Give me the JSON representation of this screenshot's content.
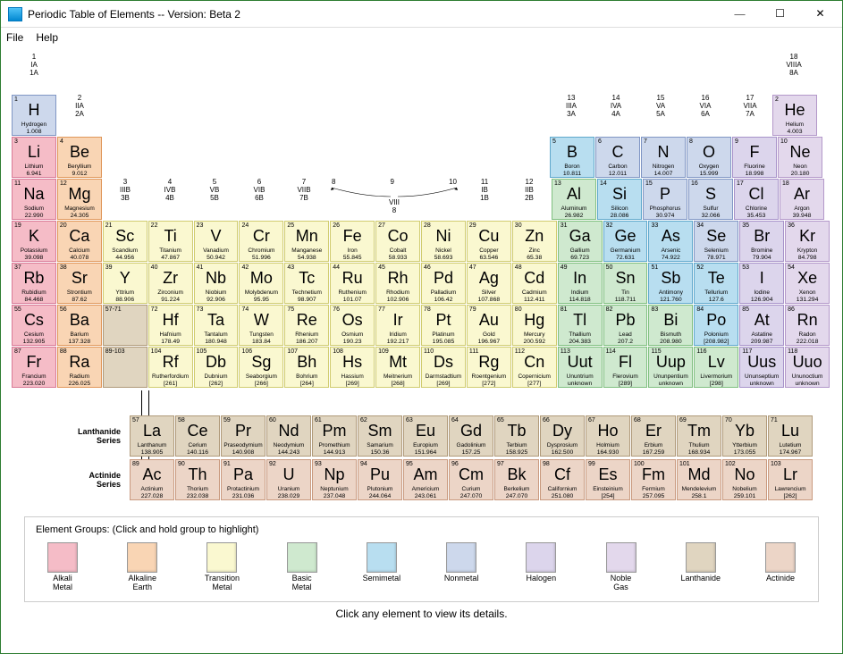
{
  "window": {
    "title": "Periodic Table of Elements  -- Version: Beta 2",
    "minimize": "—",
    "maximize": "☐",
    "close": "✕"
  },
  "menu": {
    "file": "File",
    "help": "Help"
  },
  "group_headers": [
    {
      "col": 1,
      "lines": [
        "1",
        "IA",
        "1A"
      ]
    },
    {
      "col": 2,
      "lines": [
        "2",
        "IIA",
        "2A"
      ]
    },
    {
      "col": 3,
      "lines": [
        "3",
        "IIIB",
        "3B"
      ]
    },
    {
      "col": 4,
      "lines": [
        "4",
        "IVB",
        "4B"
      ]
    },
    {
      "col": 5,
      "lines": [
        "5",
        "VB",
        "5B"
      ]
    },
    {
      "col": 6,
      "lines": [
        "6",
        "VIB",
        "6B"
      ]
    },
    {
      "col": 7,
      "lines": [
        "7",
        "VIIB",
        "7B"
      ]
    },
    {
      "col": 8,
      "lines": [
        "8",
        "",
        ""
      ]
    },
    {
      "col": 9,
      "lines": [
        "9",
        "VIII",
        "8"
      ]
    },
    {
      "col": 10,
      "lines": [
        "10",
        "",
        ""
      ]
    },
    {
      "col": 11,
      "lines": [
        "11",
        "IB",
        "1B"
      ]
    },
    {
      "col": 12,
      "lines": [
        "12",
        "IIB",
        "2B"
      ]
    },
    {
      "col": 13,
      "lines": [
        "13",
        "IIIA",
        "3A"
      ]
    },
    {
      "col": 14,
      "lines": [
        "14",
        "IVA",
        "4A"
      ]
    },
    {
      "col": 15,
      "lines": [
        "15",
        "VA",
        "5A"
      ]
    },
    {
      "col": 16,
      "lines": [
        "16",
        "VIA",
        "6A"
      ]
    },
    {
      "col": 17,
      "lines": [
        "17",
        "VIIA",
        "7A"
      ]
    },
    {
      "col": 18,
      "lines": [
        "18",
        "VIIIA",
        "8A"
      ]
    }
  ],
  "elements": [
    {
      "n": 1,
      "s": "H",
      "nm": "Hydrogen",
      "w": "1.008",
      "c": "nonmetal",
      "r": 1,
      "col": 1
    },
    {
      "n": 2,
      "s": "He",
      "nm": "Helium",
      "w": "4.003",
      "c": "noble",
      "r": 1,
      "col": 18
    },
    {
      "n": 3,
      "s": "Li",
      "nm": "Lithium",
      "w": "6.941",
      "c": "alkali",
      "r": 2,
      "col": 1
    },
    {
      "n": 4,
      "s": "Be",
      "nm": "Beryllium",
      "w": "9.012",
      "c": "alkaline",
      "r": 2,
      "col": 2
    },
    {
      "n": 5,
      "s": "B",
      "nm": "Boron",
      "w": "10.811",
      "c": "semi",
      "r": 2,
      "col": 13
    },
    {
      "n": 6,
      "s": "C",
      "nm": "Carbon",
      "w": "12.011",
      "c": "nonmetal",
      "r": 2,
      "col": 14
    },
    {
      "n": 7,
      "s": "N",
      "nm": "Nitrogen",
      "w": "14.007",
      "c": "nonmetal",
      "r": 2,
      "col": 15
    },
    {
      "n": 8,
      "s": "O",
      "nm": "Oxygen",
      "w": "15.999",
      "c": "nonmetal",
      "r": 2,
      "col": 16
    },
    {
      "n": 9,
      "s": "F",
      "nm": "Fluorine",
      "w": "18.998",
      "c": "halogen",
      "r": 2,
      "col": 17
    },
    {
      "n": 10,
      "s": "Ne",
      "nm": "Neon",
      "w": "20.180",
      "c": "noble",
      "r": 2,
      "col": 18
    },
    {
      "n": 11,
      "s": "Na",
      "nm": "Sodium",
      "w": "22.990",
      "c": "alkali",
      "r": 3,
      "col": 1
    },
    {
      "n": 12,
      "s": "Mg",
      "nm": "Magnesium",
      "w": "24.305",
      "c": "alkaline",
      "r": 3,
      "col": 2
    },
    {
      "n": 13,
      "s": "Al",
      "nm": "Aluminum",
      "w": "26.982",
      "c": "basic",
      "r": 3,
      "col": 13
    },
    {
      "n": 14,
      "s": "Si",
      "nm": "Silicon",
      "w": "28.086",
      "c": "semi",
      "r": 3,
      "col": 14
    },
    {
      "n": 15,
      "s": "P",
      "nm": "Phosphorus",
      "w": "30.974",
      "c": "nonmetal",
      "r": 3,
      "col": 15
    },
    {
      "n": 16,
      "s": "S",
      "nm": "Sulfur",
      "w": "32.066",
      "c": "nonmetal",
      "r": 3,
      "col": 16
    },
    {
      "n": 17,
      "s": "Cl",
      "nm": "Chlorine",
      "w": "35.453",
      "c": "halogen",
      "r": 3,
      "col": 17
    },
    {
      "n": 18,
      "s": "Ar",
      "nm": "Argon",
      "w": "39.948",
      "c": "noble",
      "r": 3,
      "col": 18
    },
    {
      "n": 19,
      "s": "K",
      "nm": "Potassium",
      "w": "39.098",
      "c": "alkali",
      "r": 4,
      "col": 1
    },
    {
      "n": 20,
      "s": "Ca",
      "nm": "Calcium",
      "w": "40.078",
      "c": "alkaline",
      "r": 4,
      "col": 2
    },
    {
      "n": 21,
      "s": "Sc",
      "nm": "Scandium",
      "w": "44.956",
      "c": "transition",
      "r": 4,
      "col": 3
    },
    {
      "n": 22,
      "s": "Ti",
      "nm": "Titanium",
      "w": "47.867",
      "c": "transition",
      "r": 4,
      "col": 4
    },
    {
      "n": 23,
      "s": "V",
      "nm": "Vanadium",
      "w": "50.942",
      "c": "transition",
      "r": 4,
      "col": 5
    },
    {
      "n": 24,
      "s": "Cr",
      "nm": "Chromium",
      "w": "51.996",
      "c": "transition",
      "r": 4,
      "col": 6
    },
    {
      "n": 25,
      "s": "Mn",
      "nm": "Manganese",
      "w": "54.938",
      "c": "transition",
      "r": 4,
      "col": 7
    },
    {
      "n": 26,
      "s": "Fe",
      "nm": "Iron",
      "w": "55.845",
      "c": "transition",
      "r": 4,
      "col": 8
    },
    {
      "n": 27,
      "s": "Co",
      "nm": "Cobalt",
      "w": "58.933",
      "c": "transition",
      "r": 4,
      "col": 9
    },
    {
      "n": 28,
      "s": "Ni",
      "nm": "Nickel",
      "w": "58.693",
      "c": "transition",
      "r": 4,
      "col": 10
    },
    {
      "n": 29,
      "s": "Cu",
      "nm": "Copper",
      "w": "63.546",
      "c": "transition",
      "r": 4,
      "col": 11
    },
    {
      "n": 30,
      "s": "Zn",
      "nm": "Zinc",
      "w": "65.38",
      "c": "transition",
      "r": 4,
      "col": 12
    },
    {
      "n": 31,
      "s": "Ga",
      "nm": "Gallium",
      "w": "69.723",
      "c": "basic",
      "r": 4,
      "col": 13
    },
    {
      "n": 32,
      "s": "Ge",
      "nm": "Germanium",
      "w": "72.631",
      "c": "semi",
      "r": 4,
      "col": 14
    },
    {
      "n": 33,
      "s": "As",
      "nm": "Arsenic",
      "w": "74.922",
      "c": "semi",
      "r": 4,
      "col": 15
    },
    {
      "n": 34,
      "s": "Se",
      "nm": "Selenium",
      "w": "78.971",
      "c": "nonmetal",
      "r": 4,
      "col": 16
    },
    {
      "n": 35,
      "s": "Br",
      "nm": "Bromine",
      "w": "79.904",
      "c": "halogen",
      "r": 4,
      "col": 17
    },
    {
      "n": 36,
      "s": "Kr",
      "nm": "Krypton",
      "w": "84.798",
      "c": "noble",
      "r": 4,
      "col": 18
    },
    {
      "n": 37,
      "s": "Rb",
      "nm": "Rubidium",
      "w": "84.468",
      "c": "alkali",
      "r": 5,
      "col": 1
    },
    {
      "n": 38,
      "s": "Sr",
      "nm": "Strontium",
      "w": "87.62",
      "c": "alkaline",
      "r": 5,
      "col": 2
    },
    {
      "n": 39,
      "s": "Y",
      "nm": "Yttrium",
      "w": "88.906",
      "c": "transition",
      "r": 5,
      "col": 3
    },
    {
      "n": 40,
      "s": "Zr",
      "nm": "Zirconium",
      "w": "91.224",
      "c": "transition",
      "r": 5,
      "col": 4
    },
    {
      "n": 41,
      "s": "Nb",
      "nm": "Niobium",
      "w": "92.906",
      "c": "transition",
      "r": 5,
      "col": 5
    },
    {
      "n": 42,
      "s": "Mo",
      "nm": "Molybdenum",
      "w": "95.95",
      "c": "transition",
      "r": 5,
      "col": 6
    },
    {
      "n": 43,
      "s": "Tc",
      "nm": "Technetium",
      "w": "98.907",
      "c": "transition",
      "r": 5,
      "col": 7
    },
    {
      "n": 44,
      "s": "Ru",
      "nm": "Ruthenium",
      "w": "101.07",
      "c": "transition",
      "r": 5,
      "col": 8
    },
    {
      "n": 45,
      "s": "Rh",
      "nm": "Rhodium",
      "w": "102.906",
      "c": "transition",
      "r": 5,
      "col": 9
    },
    {
      "n": 46,
      "s": "Pd",
      "nm": "Palladium",
      "w": "106.42",
      "c": "transition",
      "r": 5,
      "col": 10
    },
    {
      "n": 47,
      "s": "Ag",
      "nm": "Silver",
      "w": "107.868",
      "c": "transition",
      "r": 5,
      "col": 11
    },
    {
      "n": 48,
      "s": "Cd",
      "nm": "Cadmium",
      "w": "112.411",
      "c": "transition",
      "r": 5,
      "col": 12
    },
    {
      "n": 49,
      "s": "In",
      "nm": "Indium",
      "w": "114.818",
      "c": "basic",
      "r": 5,
      "col": 13
    },
    {
      "n": 50,
      "s": "Sn",
      "nm": "Tin",
      "w": "118.711",
      "c": "basic",
      "r": 5,
      "col": 14
    },
    {
      "n": 51,
      "s": "Sb",
      "nm": "Antimony",
      "w": "121.760",
      "c": "semi",
      "r": 5,
      "col": 15
    },
    {
      "n": 52,
      "s": "Te",
      "nm": "Tellurium",
      "w": "127.6",
      "c": "semi",
      "r": 5,
      "col": 16
    },
    {
      "n": 53,
      "s": "I",
      "nm": "Iodine",
      "w": "126.904",
      "c": "halogen",
      "r": 5,
      "col": 17
    },
    {
      "n": 54,
      "s": "Xe",
      "nm": "Xenon",
      "w": "131.294",
      "c": "noble",
      "r": 5,
      "col": 18
    },
    {
      "n": 55,
      "s": "Cs",
      "nm": "Cesium",
      "w": "132.905",
      "c": "alkali",
      "r": 6,
      "col": 1
    },
    {
      "n": 56,
      "s": "Ba",
      "nm": "Barium",
      "w": "137.328",
      "c": "alkaline",
      "r": 6,
      "col": 2
    },
    {
      "n": "57-71",
      "s": "",
      "nm": "",
      "w": "",
      "c": "range",
      "r": 6,
      "col": 3
    },
    {
      "n": 72,
      "s": "Hf",
      "nm": "Hafnium",
      "w": "178.49",
      "c": "transition",
      "r": 6,
      "col": 4
    },
    {
      "n": 73,
      "s": "Ta",
      "nm": "Tantalum",
      "w": "180.948",
      "c": "transition",
      "r": 6,
      "col": 5
    },
    {
      "n": 74,
      "s": "W",
      "nm": "Tungsten",
      "w": "183.84",
      "c": "transition",
      "r": 6,
      "col": 6
    },
    {
      "n": 75,
      "s": "Re",
      "nm": "Rhenium",
      "w": "186.207",
      "c": "transition",
      "r": 6,
      "col": 7
    },
    {
      "n": 76,
      "s": "Os",
      "nm": "Osmium",
      "w": "190.23",
      "c": "transition",
      "r": 6,
      "col": 8
    },
    {
      "n": 77,
      "s": "Ir",
      "nm": "Iridium",
      "w": "192.217",
      "c": "transition",
      "r": 6,
      "col": 9
    },
    {
      "n": 78,
      "s": "Pt",
      "nm": "Platinum",
      "w": "195.085",
      "c": "transition",
      "r": 6,
      "col": 10
    },
    {
      "n": 79,
      "s": "Au",
      "nm": "Gold",
      "w": "196.967",
      "c": "transition",
      "r": 6,
      "col": 11
    },
    {
      "n": 80,
      "s": "Hg",
      "nm": "Mercury",
      "w": "200.592",
      "c": "transition",
      "r": 6,
      "col": 12
    },
    {
      "n": 81,
      "s": "Tl",
      "nm": "Thallium",
      "w": "204.383",
      "c": "basic",
      "r": 6,
      "col": 13
    },
    {
      "n": 82,
      "s": "Pb",
      "nm": "Lead",
      "w": "207.2",
      "c": "basic",
      "r": 6,
      "col": 14
    },
    {
      "n": 83,
      "s": "Bi",
      "nm": "Bismuth",
      "w": "208.980",
      "c": "basic",
      "r": 6,
      "col": 15
    },
    {
      "n": 84,
      "s": "Po",
      "nm": "Polonium",
      "w": "[208.982]",
      "c": "semi",
      "r": 6,
      "col": 16
    },
    {
      "n": 85,
      "s": "At",
      "nm": "Astatine",
      "w": "209.987",
      "c": "halogen",
      "r": 6,
      "col": 17
    },
    {
      "n": 86,
      "s": "Rn",
      "nm": "Radon",
      "w": "222.018",
      "c": "noble",
      "r": 6,
      "col": 18
    },
    {
      "n": 87,
      "s": "Fr",
      "nm": "Francium",
      "w": "223.020",
      "c": "alkali",
      "r": 7,
      "col": 1
    },
    {
      "n": 88,
      "s": "Ra",
      "nm": "Radium",
      "w": "226.025",
      "c": "alkaline",
      "r": 7,
      "col": 2
    },
    {
      "n": "89-103",
      "s": "",
      "nm": "",
      "w": "",
      "c": "range",
      "r": 7,
      "col": 3
    },
    {
      "n": 104,
      "s": "Rf",
      "nm": "Rutherfordium",
      "w": "[261]",
      "c": "transition",
      "r": 7,
      "col": 4
    },
    {
      "n": 105,
      "s": "Db",
      "nm": "Dubnium",
      "w": "[262]",
      "c": "transition",
      "r": 7,
      "col": 5
    },
    {
      "n": 106,
      "s": "Sg",
      "nm": "Seaborgium",
      "w": "[266]",
      "c": "transition",
      "r": 7,
      "col": 6
    },
    {
      "n": 107,
      "s": "Bh",
      "nm": "Bohrium",
      "w": "[264]",
      "c": "transition",
      "r": 7,
      "col": 7
    },
    {
      "n": 108,
      "s": "Hs",
      "nm": "Hassium",
      "w": "[269]",
      "c": "transition",
      "r": 7,
      "col": 8
    },
    {
      "n": 109,
      "s": "Mt",
      "nm": "Meitnerium",
      "w": "[268]",
      "c": "transition",
      "r": 7,
      "col": 9
    },
    {
      "n": 110,
      "s": "Ds",
      "nm": "Darmstadtium",
      "w": "[269]",
      "c": "transition",
      "r": 7,
      "col": 10
    },
    {
      "n": 111,
      "s": "Rg",
      "nm": "Roentgenium",
      "w": "[272]",
      "c": "transition",
      "r": 7,
      "col": 11
    },
    {
      "n": 112,
      "s": "Cn",
      "nm": "Copernicium",
      "w": "[277]",
      "c": "transition",
      "r": 7,
      "col": 12
    },
    {
      "n": 113,
      "s": "Uut",
      "nm": "Ununtrium",
      "w": "unknown",
      "c": "basic",
      "r": 7,
      "col": 13
    },
    {
      "n": 114,
      "s": "Fl",
      "nm": "Flerovium",
      "w": "[289]",
      "c": "basic",
      "r": 7,
      "col": 14
    },
    {
      "n": 115,
      "s": "Uup",
      "nm": "Ununpentium",
      "w": "unknown",
      "c": "basic",
      "r": 7,
      "col": 15
    },
    {
      "n": 116,
      "s": "Lv",
      "nm": "Livermorium",
      "w": "[298]",
      "c": "basic",
      "r": 7,
      "col": 16
    },
    {
      "n": 117,
      "s": "Uus",
      "nm": "Ununseptium",
      "w": "unknown",
      "c": "halogen",
      "r": 7,
      "col": 17
    },
    {
      "n": 118,
      "s": "Uuo",
      "nm": "Ununoctium",
      "w": "unknown",
      "c": "noble",
      "r": 7,
      "col": 18
    }
  ],
  "lanthanides": [
    {
      "n": 57,
      "s": "La",
      "nm": "Lanthanum",
      "w": "138.905",
      "c": "lanth"
    },
    {
      "n": 58,
      "s": "Ce",
      "nm": "Cerium",
      "w": "140.116",
      "c": "lanth"
    },
    {
      "n": 59,
      "s": "Pr",
      "nm": "Praseodymium",
      "w": "140.908",
      "c": "lanth"
    },
    {
      "n": 60,
      "s": "Nd",
      "nm": "Neodymium",
      "w": "144.243",
      "c": "lanth"
    },
    {
      "n": 61,
      "s": "Pm",
      "nm": "Promethium",
      "w": "144.913",
      "c": "lanth"
    },
    {
      "n": 62,
      "s": "Sm",
      "nm": "Samarium",
      "w": "150.36",
      "c": "lanth"
    },
    {
      "n": 63,
      "s": "Eu",
      "nm": "Europium",
      "w": "151.964",
      "c": "lanth"
    },
    {
      "n": 64,
      "s": "Gd",
      "nm": "Gadolinium",
      "w": "157.25",
      "c": "lanth"
    },
    {
      "n": 65,
      "s": "Tb",
      "nm": "Terbium",
      "w": "158.925",
      "c": "lanth"
    },
    {
      "n": 66,
      "s": "Dy",
      "nm": "Dysprosium",
      "w": "162.500",
      "c": "lanth"
    },
    {
      "n": 67,
      "s": "Ho",
      "nm": "Holmium",
      "w": "164.930",
      "c": "lanth"
    },
    {
      "n": 68,
      "s": "Er",
      "nm": "Erbium",
      "w": "167.259",
      "c": "lanth"
    },
    {
      "n": 69,
      "s": "Tm",
      "nm": "Thulium",
      "w": "168.934",
      "c": "lanth"
    },
    {
      "n": 70,
      "s": "Yb",
      "nm": "Ytterbium",
      "w": "173.055",
      "c": "lanth"
    },
    {
      "n": 71,
      "s": "Lu",
      "nm": "Lutetium",
      "w": "174.967",
      "c": "lanth"
    }
  ],
  "actinides": [
    {
      "n": 89,
      "s": "Ac",
      "nm": "Actinium",
      "w": "227.028",
      "c": "act"
    },
    {
      "n": 90,
      "s": "Th",
      "nm": "Thorium",
      "w": "232.038",
      "c": "act"
    },
    {
      "n": 91,
      "s": "Pa",
      "nm": "Protactinium",
      "w": "231.036",
      "c": "act"
    },
    {
      "n": 92,
      "s": "U",
      "nm": "Uranium",
      "w": "238.029",
      "c": "act"
    },
    {
      "n": 93,
      "s": "Np",
      "nm": "Neptunium",
      "w": "237.048",
      "c": "act"
    },
    {
      "n": 94,
      "s": "Pu",
      "nm": "Plutonium",
      "w": "244.064",
      "c": "act"
    },
    {
      "n": 95,
      "s": "Am",
      "nm": "Americium",
      "w": "243.061",
      "c": "act"
    },
    {
      "n": 96,
      "s": "Cm",
      "nm": "Curium",
      "w": "247.070",
      "c": "act"
    },
    {
      "n": 97,
      "s": "Bk",
      "nm": "Berkelium",
      "w": "247.070",
      "c": "act"
    },
    {
      "n": 98,
      "s": "Cf",
      "nm": "Californium",
      "w": "251.080",
      "c": "act"
    },
    {
      "n": 99,
      "s": "Es",
      "nm": "Einsteinium",
      "w": "[254]",
      "c": "act"
    },
    {
      "n": 100,
      "s": "Fm",
      "nm": "Fermium",
      "w": "257.095",
      "c": "act"
    },
    {
      "n": 101,
      "s": "Md",
      "nm": "Mendelevium",
      "w": "258.1",
      "c": "act"
    },
    {
      "n": 102,
      "s": "No",
      "nm": "Nobelium",
      "w": "259.101",
      "c": "act"
    },
    {
      "n": 103,
      "s": "Lr",
      "nm": "Lawrencium",
      "w": "[262]",
      "c": "act"
    }
  ],
  "series_labels": {
    "lanth": "Lanthanide\nSeries",
    "act": "Actinide\nSeries"
  },
  "legend": {
    "title": "Element Groups:   (Click and hold group to highlight)",
    "items": [
      {
        "c": "alkali",
        "label": "Alkali\nMetal"
      },
      {
        "c": "alkaline",
        "label": "Alkaline\nEarth"
      },
      {
        "c": "transition",
        "label": "Transition\nMetal"
      },
      {
        "c": "basic",
        "label": "Basic\nMetal"
      },
      {
        "c": "semi",
        "label": "Semimetal"
      },
      {
        "c": "nonmetal",
        "label": "Nonmetal"
      },
      {
        "c": "halogen",
        "label": "Halogen"
      },
      {
        "c": "noble",
        "label": "Noble\nGas"
      },
      {
        "c": "lanth",
        "label": "Lanthanide"
      },
      {
        "c": "act",
        "label": "Actinide"
      }
    ]
  },
  "colors": {
    "alkali": "#f5bcc7",
    "alkaline": "#f9d5b4",
    "transition": "#faf8d0",
    "basic": "#cfe9cf",
    "semi": "#b8def0",
    "nonmetal": "#cdd8ec",
    "halogen": "#dcd5ec",
    "noble": "#e3d8ec",
    "lanth": "#e0d5c0",
    "act": "#ecd5c7"
  },
  "footer": "Click any element to view its details."
}
